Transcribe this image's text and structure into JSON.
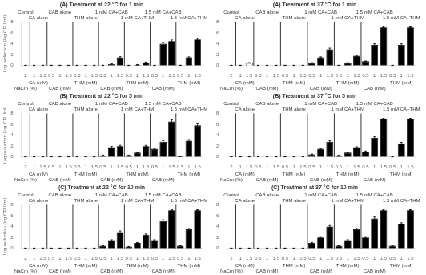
{
  "chart_data": [
    {
      "type": "bar",
      "title": "(A) Treatment at 22 °C for 1 min",
      "ylabel": "Log reduction (log CFU/ml)",
      "groups": [
        {
          "label": "Control",
          "sublabel": "NaCm (%)",
          "categories": [
            "2"
          ],
          "values": [
            0.05
          ],
          "errors": [
            0.02
          ],
          "color": "white"
        },
        {
          "label": "CA alone",
          "sublabel": "CA (mM)",
          "categories": [
            "1",
            "1.5"
          ],
          "values": [
            0.05,
            0.05
          ],
          "errors": [
            0.02,
            0.02
          ],
          "color": "white"
        },
        {
          "label": "CAB alone",
          "sublabel": "CAB (mM)",
          "categories": [
            "0.5",
            "1",
            "1.5"
          ],
          "values": [
            0.05,
            0.05,
            0.05
          ],
          "errors": [
            0.02,
            0.02,
            0.02
          ],
          "color": "white"
        },
        {
          "label": "THM alone",
          "sublabel": "THM (mM)",
          "categories": [
            "0.5",
            "1",
            "1.5"
          ],
          "values": [
            0.05,
            0.05,
            0.05
          ],
          "errors": [
            0.02,
            0.02,
            0.02
          ],
          "color": "white"
        },
        {
          "label": "1 mM CA+CAB",
          "sublabel": "CAB (mM)",
          "categories": [
            "0.5",
            "1",
            "1.5"
          ],
          "values": [
            0.05,
            0.3,
            1.5
          ],
          "errors": [
            0.02,
            0.05,
            0.15
          ],
          "color": "black"
        },
        {
          "label": "1 mM CA+THM",
          "sublabel": "THM (mM)",
          "categories": [
            "0.5",
            "1",
            "1.5"
          ],
          "values": [
            0.05,
            0.15,
            0.6
          ],
          "errors": [
            0.02,
            0.03,
            0.06
          ],
          "color": "black"
        },
        {
          "label": "1.5 mM CA+CAB",
          "sublabel": "CAB (mM)",
          "categories": [
            "0.5",
            "1",
            "1.5"
          ],
          "values": [
            0.05,
            4.0,
            4.5
          ],
          "errors": [
            0.02,
            0.2,
            0.2
          ],
          "color": "black"
        },
        {
          "label": "1.5 mM CA+THM",
          "sublabel": "THM (mM)",
          "categories": [
            "0.5",
            "1",
            "1.5"
          ],
          "values": [
            0.05,
            1.5,
            4.8
          ],
          "errors": [
            0.02,
            0.1,
            0.2
          ],
          "color": "black"
        }
      ],
      "ylim": [
        0,
        8
      ],
      "yticks": [
        0,
        2,
        4,
        6,
        8
      ],
      "grid": false
    },
    {
      "type": "bar",
      "title": "(A) Treatment at 37 °C for 1 min",
      "groups": [
        {
          "label": "Control",
          "sublabel": "NaCm (%)",
          "categories": [
            "2"
          ],
          "values": [
            0.05
          ],
          "errors": [
            0.02
          ],
          "color": "white"
        },
        {
          "label": "CA alone",
          "sublabel": "CA (mM)",
          "categories": [
            "1",
            "1.5"
          ],
          "values": [
            0.05,
            0.5
          ],
          "errors": [
            0.02,
            0.05
          ],
          "color": "white"
        },
        {
          "label": "CAB alone",
          "sublabel": "CAB (mM)",
          "categories": [
            "0.5",
            "1",
            "1.5"
          ],
          "values": [
            0.05,
            0.05,
            0.05
          ],
          "errors": [
            0.02,
            0.02,
            0.02
          ],
          "color": "white"
        },
        {
          "label": "THM alone",
          "sublabel": "THM (mM)",
          "categories": [
            "0.5",
            "1",
            "1.5"
          ],
          "values": [
            0.05,
            0.05,
            0.05
          ],
          "errors": [
            0.02,
            0.02,
            0.02
          ],
          "color": "white"
        },
        {
          "label": "1 mM CA+CAB",
          "sublabel": "CAB (mM)",
          "categories": [
            "0.5",
            "1",
            "1.5"
          ],
          "values": [
            0.5,
            1.5,
            3.0
          ],
          "errors": [
            0.05,
            0.1,
            0.2
          ],
          "color": "black"
        },
        {
          "label": "1 mM CA+THM",
          "sublabel": "THM (mM)",
          "categories": [
            "0.5",
            "1",
            "1.5"
          ],
          "values": [
            0.05,
            0.5,
            1.8
          ],
          "errors": [
            0.02,
            0.05,
            0.1
          ],
          "color": "black"
        },
        {
          "label": "1.5 mM CA+CAB",
          "sublabel": "CAB (mM)",
          "categories": [
            "0.5",
            "1",
            "1.5"
          ],
          "values": [
            0.8,
            3.8,
            7.0
          ],
          "errors": [
            0.05,
            0.2,
            0.1
          ],
          "color": "black"
        },
        {
          "label": "1.5 mM CA+THM",
          "sublabel": "THM (mM)",
          "categories": [
            "0.5",
            "1",
            "1.5"
          ],
          "values": [
            0.05,
            3.8,
            7.0
          ],
          "errors": [
            0.02,
            0.2,
            0.1
          ],
          "color": "black"
        }
      ],
      "ylim": [
        0,
        8
      ],
      "yticks": [
        0,
        2,
        4,
        6,
        8
      ],
      "grid": false
    },
    {
      "type": "bar",
      "title": "(B) Treatment at 22 °C for 5 min",
      "ylabel": "Log reduction (log CFU/ml)",
      "groups": [
        {
          "label": "Control",
          "sublabel": "NaCm (%)",
          "categories": [
            "2"
          ],
          "values": [
            0.05
          ],
          "errors": [
            0.02
          ],
          "color": "white"
        },
        {
          "label": "CA alone",
          "sublabel": "CA (mM)",
          "categories": [
            "1",
            "1.5"
          ],
          "values": [
            0.05,
            0.05
          ],
          "errors": [
            0.02,
            0.02
          ],
          "color": "white"
        },
        {
          "label": "CAB alone",
          "sublabel": "CAB (mM)",
          "categories": [
            "0.5",
            "1",
            "1.5"
          ],
          "values": [
            0.05,
            0.05,
            0.05
          ],
          "errors": [
            0.02,
            0.02,
            0.02
          ],
          "color": "white"
        },
        {
          "label": "THM alone",
          "sublabel": "THM (mM)",
          "categories": [
            "0.5",
            "1",
            "1.5"
          ],
          "values": [
            0.05,
            0.05,
            0.05
          ],
          "errors": [
            0.02,
            0.02,
            0.02
          ],
          "color": "white"
        },
        {
          "label": "1 mM CA+CAB",
          "sublabel": "CAB (mM)",
          "categories": [
            "0.5",
            "1",
            "1.5"
          ],
          "values": [
            0.3,
            1.8,
            2.0
          ],
          "errors": [
            0.05,
            0.15,
            0.15
          ],
          "color": "black"
        },
        {
          "label": "1 mM CA+THM",
          "sublabel": "THM (mM)",
          "categories": [
            "0.5",
            "1",
            "1.5"
          ],
          "values": [
            0.3,
            0.8,
            2.0
          ],
          "errors": [
            0.05,
            0.08,
            0.15
          ],
          "color": "black"
        },
        {
          "label": "1.5 mM CA+CAB",
          "sublabel": "CAB (mM)",
          "categories": [
            "0.5",
            "1",
            "1.5"
          ],
          "values": [
            1.5,
            2.8,
            6.5
          ],
          "errors": [
            0.1,
            0.2,
            0.3
          ],
          "color": "black"
        },
        {
          "label": "1.5 mM CA+THM",
          "sublabel": "THM (mM)",
          "categories": [
            "0.5",
            "1",
            "1.5"
          ],
          "values": [
            0.1,
            3.0,
            5.8
          ],
          "errors": [
            0.02,
            0.2,
            0.3
          ],
          "color": "black"
        }
      ],
      "ylim": [
        0,
        8
      ],
      "yticks": [
        0,
        2,
        4,
        6,
        8
      ],
      "grid": false
    },
    {
      "type": "bar",
      "title": "(B) Treatment at 37 °C for 5 min",
      "groups": [
        {
          "label": "Control",
          "sublabel": "NaCm (%)",
          "categories": [
            "2"
          ],
          "values": [
            0.05
          ],
          "errors": [
            0.02
          ],
          "color": "white"
        },
        {
          "label": "CA alone",
          "sublabel": "CA (mM)",
          "categories": [
            "1",
            "1.5"
          ],
          "values": [
            0.05,
            0.05
          ],
          "errors": [
            0.02,
            0.02
          ],
          "color": "white"
        },
        {
          "label": "CAB alone",
          "sublabel": "CAB (mM)",
          "categories": [
            "0.5",
            "1",
            "1.5"
          ],
          "values": [
            0.05,
            0.05,
            0.05
          ],
          "errors": [
            0.02,
            0.02,
            0.02
          ],
          "color": "white"
        },
        {
          "label": "THM alone",
          "sublabel": "THM (mM)",
          "categories": [
            "0.5",
            "1",
            "1.5"
          ],
          "values": [
            0.05,
            0.05,
            0.05
          ],
          "errors": [
            0.02,
            0.02,
            0.02
          ],
          "color": "white"
        },
        {
          "label": "1 mM CA+CAB",
          "sublabel": "CAB (mM)",
          "categories": [
            "0.5",
            "1",
            "1.5"
          ],
          "values": [
            0.5,
            1.5,
            2.8
          ],
          "errors": [
            0.05,
            0.1,
            0.2
          ],
          "color": "black"
        },
        {
          "label": "1 mM CA+THM",
          "sublabel": "THM (mM)",
          "categories": [
            "0.5",
            "1",
            "1.5"
          ],
          "values": [
            0.3,
            0.8,
            1.8
          ],
          "errors": [
            0.05,
            0.08,
            0.1
          ],
          "color": "black"
        },
        {
          "label": "1.5 mM CA+CAB",
          "sublabel": "CAB (mM)",
          "categories": [
            "0.5",
            "1",
            "1.5"
          ],
          "values": [
            1.0,
            3.5,
            7.0
          ],
          "errors": [
            0.1,
            0.2,
            0.1
          ],
          "color": "black"
        },
        {
          "label": "1.5 mM CA+THM",
          "sublabel": "THM (mM)",
          "categories": [
            "0.5",
            "1",
            "1.5"
          ],
          "values": [
            0.05,
            2.5,
            7.0
          ],
          "errors": [
            0.02,
            0.2,
            0.1
          ],
          "color": "black"
        }
      ],
      "ylim": [
        0,
        8
      ],
      "yticks": [
        0,
        2,
        4,
        6,
        8
      ],
      "grid": false
    },
    {
      "type": "bar",
      "title": "(C) Treatment at 22 °C for 10 min",
      "ylabel": "Log reduction (log CFU/ml)",
      "groups": [
        {
          "label": "Control",
          "sublabel": "NaCm (%)",
          "categories": [
            "2"
          ],
          "values": [
            0.05
          ],
          "errors": [
            0.02
          ],
          "color": "white"
        },
        {
          "label": "CA alone",
          "sublabel": "CA (mM)",
          "categories": [
            "1",
            "1.5"
          ],
          "values": [
            0.05,
            0.05
          ],
          "errors": [
            0.02,
            0.02
          ],
          "color": "white"
        },
        {
          "label": "CAB alone",
          "sublabel": "CAB (mM)",
          "categories": [
            "0.5",
            "1",
            "1.5"
          ],
          "values": [
            0.05,
            0.05,
            0.05
          ],
          "errors": [
            0.02,
            0.02,
            0.02
          ],
          "color": "white"
        },
        {
          "label": "THM alone",
          "sublabel": "THM (mM)",
          "categories": [
            "0.5",
            "1",
            "1.5"
          ],
          "values": [
            0.05,
            0.05,
            0.05
          ],
          "errors": [
            0.02,
            0.02,
            0.02
          ],
          "color": "white"
        },
        {
          "label": "1 mM CA+CAB",
          "sublabel": "CAB (mM)",
          "categories": [
            "0.5",
            "1",
            "1.5"
          ],
          "values": [
            0.5,
            1.5,
            3.0
          ],
          "errors": [
            0.05,
            0.1,
            0.2
          ],
          "color": "black"
        },
        {
          "label": "1 mM CA+THM",
          "sublabel": "THM (mM)",
          "categories": [
            "0.5",
            "1",
            "1.5"
          ],
          "values": [
            0.3,
            1.0,
            2.5
          ],
          "errors": [
            0.05,
            0.08,
            0.15
          ],
          "color": "black"
        },
        {
          "label": "1.5 mM CA+CAB",
          "sublabel": "CAB (mM)",
          "categories": [
            "0.5",
            "1",
            "1.5"
          ],
          "values": [
            1.5,
            5.0,
            7.0
          ],
          "errors": [
            0.1,
            0.25,
            0.1
          ],
          "color": "black"
        },
        {
          "label": "1.5 mM CA+THM",
          "sublabel": "THM (mM)",
          "categories": [
            "0.5",
            "1",
            "1.5"
          ],
          "values": [
            0.5,
            3.5,
            7.0
          ],
          "errors": [
            0.05,
            0.2,
            0.1
          ],
          "color": "black"
        }
      ],
      "ylim": [
        0,
        8
      ],
      "yticks": [
        0,
        2,
        4,
        6,
        8
      ],
      "grid": false
    },
    {
      "type": "bar",
      "title": "(C) Treatment at 37 °C for 10 min",
      "groups": [
        {
          "label": "Control",
          "sublabel": "NaCm (%)",
          "categories": [
            "2"
          ],
          "values": [
            0.05
          ],
          "errors": [
            0.02
          ],
          "color": "white"
        },
        {
          "label": "CA alone",
          "sublabel": "CA (mM)",
          "categories": [
            "1",
            "1.5"
          ],
          "values": [
            0.05,
            0.05
          ],
          "errors": [
            0.02,
            0.02
          ],
          "color": "white"
        },
        {
          "label": "CAB alone",
          "sublabel": "CAB (mM)",
          "categories": [
            "0.5",
            "1",
            "1.5"
          ],
          "values": [
            0.05,
            0.05,
            0.05
          ],
          "errors": [
            0.02,
            0.02,
            0.02
          ],
          "color": "white"
        },
        {
          "label": "THM alone",
          "sublabel": "THM (mM)",
          "categories": [
            "0.5",
            "1",
            "1.5"
          ],
          "values": [
            0.05,
            0.05,
            0.05
          ],
          "errors": [
            0.02,
            0.02,
            0.02
          ],
          "color": "white"
        },
        {
          "label": "1 mM CA+CAB",
          "sublabel": "CAB (mM)",
          "categories": [
            "0.5",
            "1",
            "1.5"
          ],
          "values": [
            1.0,
            2.0,
            4.0
          ],
          "errors": [
            0.1,
            0.15,
            0.2
          ],
          "color": "black"
        },
        {
          "label": "1 mM CA+THM",
          "sublabel": "THM (mM)",
          "categories": [
            "0.5",
            "1",
            "1.5"
          ],
          "values": [
            0.5,
            1.5,
            3.5
          ],
          "errors": [
            0.05,
            0.1,
            0.2
          ],
          "color": "black"
        },
        {
          "label": "1.5 mM CA+CAB",
          "sublabel": "CAB (mM)",
          "categories": [
            "0.5",
            "1",
            "1.5"
          ],
          "values": [
            2.0,
            5.5,
            7.0
          ],
          "errors": [
            0.15,
            0.25,
            0.1
          ],
          "color": "black"
        },
        {
          "label": "1.5 mM CA+THM",
          "sublabel": "THM (mM)",
          "categories": [
            "0.5",
            "1",
            "1.5"
          ],
          "values": [
            0.5,
            4.5,
            7.0
          ],
          "errors": [
            0.05,
            0.2,
            0.1
          ],
          "color": "black"
        }
      ],
      "ylim": [
        0,
        8
      ],
      "yticks": [
        0,
        2,
        4,
        6,
        8
      ],
      "grid": false
    }
  ]
}
